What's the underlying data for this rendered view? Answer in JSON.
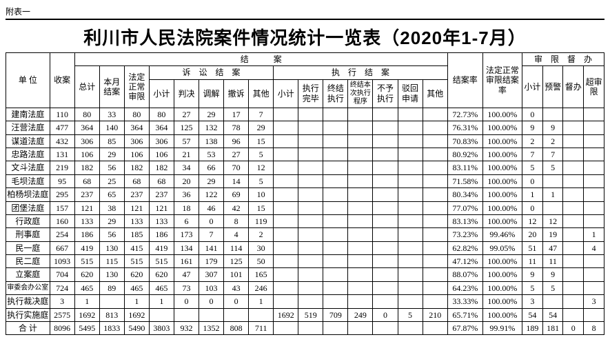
{
  "annex": "附表一",
  "title": "利川市人民法院案件情况统计一览表（2020年1-7月）",
  "headers": {
    "unit": "单 位",
    "received": "收案",
    "closed_group": "结　　　案",
    "total": "总计",
    "month_close": "本月结案",
    "normal_limit": "法定正常审限",
    "litigation_close": "诉　讼　结　案",
    "subtotal": "小计",
    "judgment": "判决",
    "mediation": "调解",
    "withdraw": "撤诉",
    "other": "其他",
    "exec_close": "执　行　结　案",
    "exec_done": "执行完毕",
    "exec_end": "终结执行",
    "exec_end_this": "终结本次执行程序",
    "exec_no": "不予执行",
    "exec_reject": "驳回申请",
    "close_rate": "结案率",
    "normal_rate": "法定正常审限结案率",
    "supervise": "审　限　督　办",
    "warn": "预警",
    "urge": "督办",
    "over": "超审限"
  },
  "rows": [
    {
      "unit": "建南法庭",
      "received": "110",
      "total": "80",
      "month": "33",
      "normal": "80",
      "lit_sub": "80",
      "judg": "27",
      "med": "29",
      "wd": "17",
      "oth": "7",
      "ex_sub": "",
      "ex_done": "",
      "ex_end": "",
      "ex_this": "",
      "ex_no": "",
      "ex_rej": "",
      "ex_oth": "",
      "rate": "72.73%",
      "nrate": "100.00%",
      "s_sub": "0",
      "warn": "",
      "urge": "",
      "over": ""
    },
    {
      "unit": "汪营法庭",
      "received": "477",
      "total": "364",
      "month": "140",
      "normal": "364",
      "lit_sub": "364",
      "judg": "125",
      "med": "132",
      "wd": "78",
      "oth": "29",
      "ex_sub": "",
      "ex_done": "",
      "ex_end": "",
      "ex_this": "",
      "ex_no": "",
      "ex_rej": "",
      "ex_oth": "",
      "rate": "76.31%",
      "nrate": "100.00%",
      "s_sub": "9",
      "warn": "9",
      "urge": "",
      "over": ""
    },
    {
      "unit": "谋道法庭",
      "received": "432",
      "total": "306",
      "month": "85",
      "normal": "306",
      "lit_sub": "306",
      "judg": "57",
      "med": "138",
      "wd": "96",
      "oth": "15",
      "ex_sub": "",
      "ex_done": "",
      "ex_end": "",
      "ex_this": "",
      "ex_no": "",
      "ex_rej": "",
      "ex_oth": "",
      "rate": "70.83%",
      "nrate": "100.00%",
      "s_sub": "2",
      "warn": "2",
      "urge": "",
      "over": ""
    },
    {
      "unit": "忠路法庭",
      "received": "131",
      "total": "106",
      "month": "29",
      "normal": "106",
      "lit_sub": "106",
      "judg": "21",
      "med": "53",
      "wd": "27",
      "oth": "5",
      "ex_sub": "",
      "ex_done": "",
      "ex_end": "",
      "ex_this": "",
      "ex_no": "",
      "ex_rej": "",
      "ex_oth": "",
      "rate": "80.92%",
      "nrate": "100.00%",
      "s_sub": "7",
      "warn": "7",
      "urge": "",
      "over": ""
    },
    {
      "unit": "文斗法庭",
      "received": "219",
      "total": "182",
      "month": "56",
      "normal": "182",
      "lit_sub": "182",
      "judg": "34",
      "med": "66",
      "wd": "70",
      "oth": "12",
      "ex_sub": "",
      "ex_done": "",
      "ex_end": "",
      "ex_this": "",
      "ex_no": "",
      "ex_rej": "",
      "ex_oth": "",
      "rate": "83.11%",
      "nrate": "100.00%",
      "s_sub": "5",
      "warn": "5",
      "urge": "",
      "over": ""
    },
    {
      "unit": "毛坝法庭",
      "received": "95",
      "total": "68",
      "month": "25",
      "normal": "68",
      "lit_sub": "68",
      "judg": "20",
      "med": "29",
      "wd": "14",
      "oth": "5",
      "ex_sub": "",
      "ex_done": "",
      "ex_end": "",
      "ex_this": "",
      "ex_no": "",
      "ex_rej": "",
      "ex_oth": "",
      "rate": "71.58%",
      "nrate": "100.00%",
      "s_sub": "0",
      "warn": "",
      "urge": "",
      "over": ""
    },
    {
      "unit": "柏杨坝法庭",
      "received": "295",
      "total": "237",
      "month": "65",
      "normal": "237",
      "lit_sub": "237",
      "judg": "36",
      "med": "122",
      "wd": "69",
      "oth": "10",
      "ex_sub": "",
      "ex_done": "",
      "ex_end": "",
      "ex_this": "",
      "ex_no": "",
      "ex_rej": "",
      "ex_oth": "",
      "rate": "80.34%",
      "nrate": "100.00%",
      "s_sub": "1",
      "warn": "1",
      "urge": "",
      "over": ""
    },
    {
      "unit": "团堡法庭",
      "received": "157",
      "total": "121",
      "month": "38",
      "normal": "121",
      "lit_sub": "121",
      "judg": "18",
      "med": "46",
      "wd": "42",
      "oth": "15",
      "ex_sub": "",
      "ex_done": "",
      "ex_end": "",
      "ex_this": "",
      "ex_no": "",
      "ex_rej": "",
      "ex_oth": "",
      "rate": "77.07%",
      "nrate": "100.00%",
      "s_sub": "0",
      "warn": "",
      "urge": "",
      "over": ""
    },
    {
      "unit": "行政庭",
      "received": "160",
      "total": "133",
      "month": "29",
      "normal": "133",
      "lit_sub": "133",
      "judg": "6",
      "med": "0",
      "wd": "8",
      "oth": "119",
      "ex_sub": "",
      "ex_done": "",
      "ex_end": "",
      "ex_this": "",
      "ex_no": "",
      "ex_rej": "",
      "ex_oth": "",
      "rate": "83.13%",
      "nrate": "100.00%",
      "s_sub": "12",
      "warn": "12",
      "urge": "",
      "over": ""
    },
    {
      "unit": "刑事庭",
      "received": "254",
      "total": "186",
      "month": "56",
      "normal": "185",
      "lit_sub": "186",
      "judg": "173",
      "med": "7",
      "wd": "4",
      "oth": "2",
      "ex_sub": "",
      "ex_done": "",
      "ex_end": "",
      "ex_this": "",
      "ex_no": "",
      "ex_rej": "",
      "ex_oth": "",
      "rate": "73.23%",
      "nrate": "99.46%",
      "s_sub": "20",
      "warn": "19",
      "urge": "",
      "over": "1"
    },
    {
      "unit": "民一庭",
      "received": "667",
      "total": "419",
      "month": "130",
      "normal": "415",
      "lit_sub": "419",
      "judg": "134",
      "med": "141",
      "wd": "114",
      "oth": "30",
      "ex_sub": "",
      "ex_done": "",
      "ex_end": "",
      "ex_this": "",
      "ex_no": "",
      "ex_rej": "",
      "ex_oth": "",
      "rate": "62.82%",
      "nrate": "99.05%",
      "s_sub": "51",
      "warn": "47",
      "urge": "",
      "over": "4"
    },
    {
      "unit": "民二庭",
      "received": "1093",
      "total": "515",
      "month": "115",
      "normal": "515",
      "lit_sub": "515",
      "judg": "161",
      "med": "179",
      "wd": "125",
      "oth": "50",
      "ex_sub": "",
      "ex_done": "",
      "ex_end": "",
      "ex_this": "",
      "ex_no": "",
      "ex_rej": "",
      "ex_oth": "",
      "rate": "47.12%",
      "nrate": "100.00%",
      "s_sub": "11",
      "warn": "11",
      "urge": "",
      "over": ""
    },
    {
      "unit": "立案庭",
      "received": "704",
      "total": "620",
      "month": "130",
      "normal": "620",
      "lit_sub": "620",
      "judg": "47",
      "med": "307",
      "wd": "101",
      "oth": "165",
      "ex_sub": "",
      "ex_done": "",
      "ex_end": "",
      "ex_this": "",
      "ex_no": "",
      "ex_rej": "",
      "ex_oth": "",
      "rate": "88.07%",
      "nrate": "100.00%",
      "s_sub": "9",
      "warn": "9",
      "urge": "",
      "over": ""
    },
    {
      "unit": "审委会办公室",
      "received": "724",
      "total": "465",
      "month": "89",
      "normal": "465",
      "lit_sub": "465",
      "judg": "73",
      "med": "103",
      "wd": "43",
      "oth": "246",
      "ex_sub": "",
      "ex_done": "",
      "ex_end": "",
      "ex_this": "",
      "ex_no": "",
      "ex_rej": "",
      "ex_oth": "",
      "rate": "64.23%",
      "nrate": "100.00%",
      "s_sub": "5",
      "warn": "5",
      "urge": "",
      "over": ""
    },
    {
      "unit": "执行裁决庭",
      "received": "3",
      "total": "1",
      "month": "",
      "normal": "1",
      "lit_sub": "1",
      "judg": "0",
      "med": "0",
      "wd": "0",
      "oth": "1",
      "ex_sub": "",
      "ex_done": "",
      "ex_end": "",
      "ex_this": "",
      "ex_no": "",
      "ex_rej": "",
      "ex_oth": "",
      "rate": "33.33%",
      "nrate": "100.00%",
      "s_sub": "3",
      "warn": "",
      "urge": "",
      "over": "3"
    },
    {
      "unit": "执行实施庭",
      "received": "2575",
      "total": "1692",
      "month": "813",
      "normal": "1692",
      "lit_sub": "",
      "judg": "",
      "med": "",
      "wd": "",
      "oth": "",
      "ex_sub": "1692",
      "ex_done": "519",
      "ex_end": "709",
      "ex_this": "249",
      "ex_no": "0",
      "ex_rej": "5",
      "ex_oth": "210",
      "rate": "65.71%",
      "nrate": "100.00%",
      "s_sub": "54",
      "warn": "54",
      "urge": "",
      "over": ""
    },
    {
      "unit": "合 计",
      "received": "8096",
      "total": "5495",
      "month": "1833",
      "normal": "5490",
      "lit_sub": "3803",
      "judg": "932",
      "med": "1352",
      "wd": "808",
      "oth": "711",
      "ex_sub": "",
      "ex_done": "",
      "ex_end": "",
      "ex_this": "",
      "ex_no": "",
      "ex_rej": "",
      "ex_oth": "",
      "rate": "67.87%",
      "nrate": "99.91%",
      "s_sub": "189",
      "warn": "181",
      "urge": "0",
      "over": "8"
    }
  ]
}
